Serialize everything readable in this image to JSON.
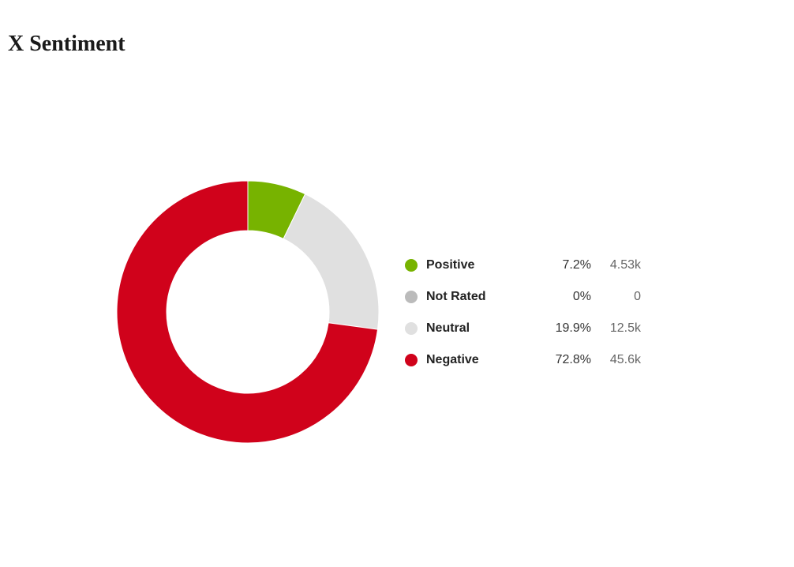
{
  "title": "X Sentiment",
  "chart_data": {
    "type": "pie",
    "variant": "donut",
    "title": "X Sentiment",
    "legend_position": "right",
    "categories": [
      "Positive",
      "Not Rated",
      "Neutral",
      "Negative"
    ],
    "values": [
      7.2,
      0,
      19.9,
      72.8
    ],
    "percent_labels": [
      "7.2%",
      "0%",
      "19.9%",
      "72.8%"
    ],
    "count_labels": [
      "4.53k",
      "0",
      "12.5k",
      "45.6k"
    ],
    "colors": [
      "#77b300",
      "#bbbbbb",
      "#e0e0e0",
      "#d0021b"
    ]
  }
}
